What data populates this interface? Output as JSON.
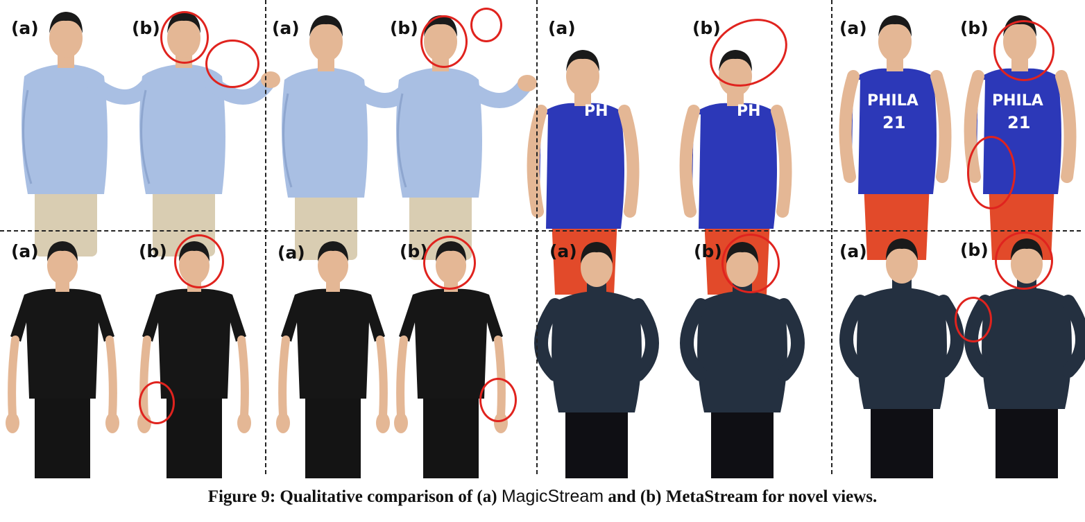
{
  "panels": [
    {
      "a": "(a)",
      "b": "(b)"
    },
    {
      "a": "(a)",
      "b": "(b)"
    },
    {
      "a": "(a)",
      "b": "(b)"
    },
    {
      "a": "(a)",
      "b": "(b)"
    },
    {
      "a": "(a)",
      "b": "(b)"
    },
    {
      "a": "(a)",
      "b": "(b)"
    },
    {
      "a": "(a)",
      "b": "(b)"
    },
    {
      "a": "(a)",
      "b": "(b)"
    }
  ],
  "jersey": {
    "team": "PHILA",
    "number": "21",
    "partial": "PH"
  },
  "caption": {
    "figure_label": "Figure 9:",
    "text1": "Qualitative comparison of (a)",
    "method_a": "MagicStream",
    "text2": "and (b)",
    "method_b": "MetaStream",
    "text3": "for novel views."
  },
  "colors": {
    "highlight": "#e0231e",
    "shirt_blue": "#a9bfe3",
    "pants_beige": "#d9cdb2",
    "jersey_blue": "#2c38b8",
    "jersey_red": "#e24a2a",
    "shirt_black": "#161616",
    "sweater_navy": "#243040",
    "skin": "#e4b795",
    "hair": "#1a1a1a"
  }
}
